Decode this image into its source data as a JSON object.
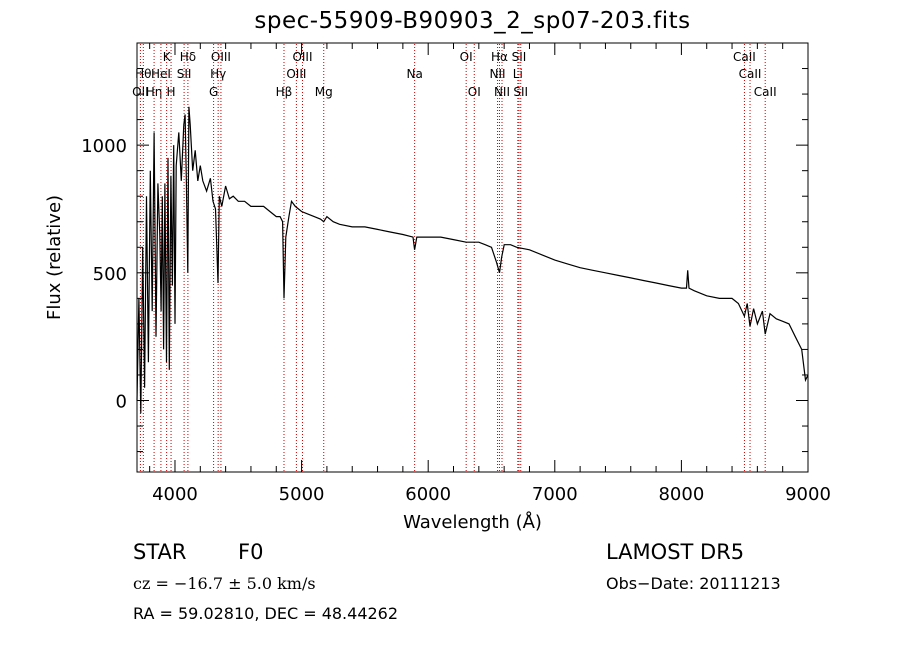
{
  "chart_data": {
    "type": "line",
    "title": "spec-55909-B90903_2_sp07-203.fits",
    "xlabel": "Wavelength (Å)",
    "ylabel": "Flux (relative)",
    "xlim": [
      3700,
      9000
    ],
    "ylim": [
      -280,
      1400
    ],
    "xticks": [
      4000,
      5000,
      6000,
      7000,
      8000,
      9000
    ],
    "yticks": [
      0,
      500,
      1000
    ],
    "grid": false,
    "line_color": "#000000",
    "marker_color": "#cc0000",
    "series": [
      {
        "x": [
          3700,
          3715,
          3730,
          3745,
          3760,
          3775,
          3790,
          3805,
          3820,
          3835,
          3850,
          3865,
          3880,
          3890,
          3900,
          3910,
          3920,
          3933,
          3945,
          3955,
          3968,
          3980,
          3990,
          4000,
          4010,
          4030,
          4050,
          4070,
          4080,
          4090,
          4101,
          4110,
          4120,
          4140,
          4160,
          4180,
          4200,
          4220,
          4250,
          4280,
          4300,
          4320,
          4340,
          4350,
          4370,
          4400,
          4430,
          4460,
          4500,
          4550,
          4600,
          4650,
          4700,
          4750,
          4800,
          4830,
          4850,
          4861,
          4875,
          4900,
          4920,
          4950,
          5000,
          5050,
          5100,
          5150,
          5175,
          5200,
          5250,
          5300,
          5400,
          5500,
          5600,
          5700,
          5800,
          5880,
          5893,
          5910,
          6000,
          6100,
          6200,
          6300,
          6400,
          6450,
          6500,
          6540,
          6563,
          6580,
          6600,
          6650,
          6700,
          6800,
          6900,
          7000,
          7100,
          7200,
          7300,
          7400,
          7500,
          7600,
          7700,
          7800,
          7900,
          8000,
          8040,
          8050,
          8060,
          8100,
          8200,
          8300,
          8400,
          8450,
          8498,
          8520,
          8542,
          8570,
          8600,
          8640,
          8662,
          8700,
          8750,
          8800,
          8850,
          8900,
          8950,
          8980,
          9000
        ],
        "y": [
          0,
          400,
          -50,
          600,
          50,
          800,
          150,
          900,
          350,
          1050,
          250,
          850,
          650,
          350,
          800,
          200,
          850,
          150,
          950,
          120,
          880,
          450,
          1000,
          300,
          920,
          1050,
          860,
          1080,
          1120,
          850,
          500,
          1150,
          1080,
          900,
          980,
          860,
          920,
          860,
          820,
          870,
          780,
          750,
          460,
          800,
          760,
          840,
          790,
          800,
          780,
          780,
          760,
          760,
          760,
          740,
          720,
          720,
          700,
          400,
          640,
          720,
          780,
          760,
          740,
          730,
          720,
          710,
          700,
          720,
          700,
          690,
          680,
          680,
          670,
          660,
          650,
          640,
          590,
          640,
          640,
          640,
          630,
          620,
          620,
          610,
          600,
          540,
          500,
          560,
          610,
          610,
          600,
          590,
          570,
          550,
          535,
          520,
          510,
          500,
          490,
          480,
          470,
          460,
          450,
          440,
          440,
          510,
          440,
          430,
          410,
          400,
          400,
          380,
          330,
          380,
          290,
          360,
          300,
          350,
          260,
          340,
          320,
          310,
          300,
          250,
          200,
          80,
          100
        ]
      }
    ],
    "line_markers": [
      {
        "label": "OII",
        "wl": 3727,
        "row": 2
      },
      {
        "label": "Hθ",
        "wl": 3750,
        "row": 1
      },
      {
        "label": "Hη",
        "wl": 3835,
        "row": 2
      },
      {
        "label": "HeI",
        "wl": 3889,
        "row": 1
      },
      {
        "label": "K",
        "wl": 3934,
        "row": 0
      },
      {
        "label": "H",
        "wl": 3969,
        "row": 2
      },
      {
        "label": "Hδ",
        "wl": 4102,
        "row": 0
      },
      {
        "label": "SII",
        "wl": 4072,
        "row": 1
      },
      {
        "label": "OIII",
        "wl": 4363,
        "row": 0
      },
      {
        "label": "Hγ",
        "wl": 4341,
        "row": 1
      },
      {
        "label": "G",
        "wl": 4305,
        "row": 2
      },
      {
        "label": "Hβ",
        "wl": 4861,
        "row": 2
      },
      {
        "label": "OIII",
        "wl": 4959,
        "row": 1
      },
      {
        "label": "OIII",
        "wl": 5007,
        "row": 0
      },
      {
        "label": "Mg",
        "wl": 5175,
        "row": 2
      },
      {
        "label": "Na",
        "wl": 5893,
        "row": 1
      },
      {
        "label": "OI",
        "wl": 6300,
        "row": 0
      },
      {
        "label": "OI",
        "wl": 6364,
        "row": 2
      },
      {
        "label": "NII",
        "wl": 6548,
        "row": 1
      },
      {
        "label": "Hα",
        "wl": 6563,
        "row": 0
      },
      {
        "label": "NII",
        "wl": 6583,
        "row": 2
      },
      {
        "label": "SII",
        "wl": 6717,
        "row": 0
      },
      {
        "label": "Li",
        "wl": 6708,
        "row": 1
      },
      {
        "label": "SII",
        "wl": 6731,
        "row": 2
      },
      {
        "label": "CaII",
        "wl": 8498,
        "row": 0
      },
      {
        "label": "CaII",
        "wl": 8542,
        "row": 1
      },
      {
        "label": "CaII",
        "wl": 8662,
        "row": 2
      }
    ]
  },
  "info": {
    "object_class": "STAR",
    "subclass": "F0",
    "survey": "LAMOST  DR5",
    "cz": "cz = −16.7 ± 5.0 km/s",
    "obs_date": "Obs−Date: 20111213",
    "coords": "RA =  59.02810, DEC =  48.44262"
  }
}
